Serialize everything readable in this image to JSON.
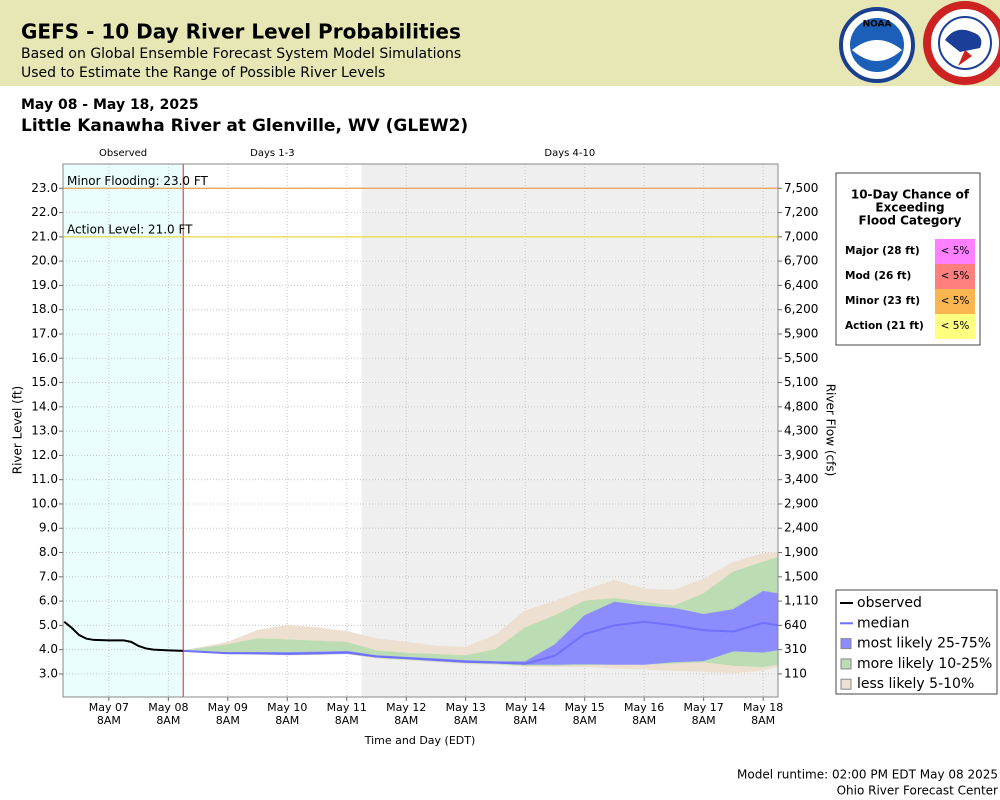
{
  "header": {
    "title": "GEFS - 10 Day River Level Probabilities",
    "subtitle_1": "Based on Global Ensemble Forecast System Model Simulations",
    "subtitle_2": "Used to Estimate the Range of Possible River Levels",
    "logo_text": "NOAA"
  },
  "chart_data": {
    "type": "line",
    "date_range": "May 08 - May 18, 2025",
    "title": "Little Kanawha River at Glenville, WV (GLEW2)",
    "x_label": "Time and Day (EDT)",
    "y_label": "River Level (ft)",
    "y2_label": "River Flow (cfs)",
    "xlim": [
      "2025-05-06T13:30",
      "2025-05-18T14:00"
    ],
    "xticks": [
      {
        "value": "2025-05-07T08:00",
        "label": "May 07\n8AM"
      },
      {
        "value": "2025-05-08T08:00",
        "label": "May 08\n8AM"
      },
      {
        "value": "2025-05-09T08:00",
        "label": "May 09\n8AM"
      },
      {
        "value": "2025-05-10T08:00",
        "label": "May 10\n8AM"
      },
      {
        "value": "2025-05-11T08:00",
        "label": "May 11\n8AM"
      },
      {
        "value": "2025-05-12T08:00",
        "label": "May 12\n8AM"
      },
      {
        "value": "2025-05-13T08:00",
        "label": "May 13\n8AM"
      },
      {
        "value": "2025-05-14T08:00",
        "label": "May 14\n8AM"
      },
      {
        "value": "2025-05-15T08:00",
        "label": "May 15\n8AM"
      },
      {
        "value": "2025-05-16T08:00",
        "label": "May 16\n8AM"
      },
      {
        "value": "2025-05-17T08:00",
        "label": "May 17\n8AM"
      },
      {
        "value": "2025-05-18T08:00",
        "label": "May 18\n8AM"
      }
    ],
    "ylim": [
      2.05,
      24.0
    ],
    "yticks": [
      {
        "value": 23,
        "label": "23.0"
      },
      {
        "value": 22,
        "label": "22.0"
      },
      {
        "value": 21,
        "label": "21.0"
      },
      {
        "value": 20,
        "label": "20.0"
      },
      {
        "value": 19,
        "label": "19.0"
      },
      {
        "value": 18,
        "label": "18.0"
      },
      {
        "value": 17,
        "label": "17.0"
      },
      {
        "value": 16,
        "label": "16.0"
      },
      {
        "value": 15,
        "label": "15.0"
      },
      {
        "value": 14,
        "label": "14.0"
      },
      {
        "value": 13,
        "label": "13.0"
      },
      {
        "value": 12,
        "label": "12.0"
      },
      {
        "value": 11,
        "label": "11.0"
      },
      {
        "value": 10,
        "label": "10.0"
      },
      {
        "value": 9,
        "label": "9.0"
      },
      {
        "value": 8,
        "label": "8.0"
      },
      {
        "value": 7,
        "label": "7.0"
      },
      {
        "value": 6,
        "label": "6.0"
      },
      {
        "value": 5,
        "label": "5.0"
      },
      {
        "value": 4,
        "label": "4.0"
      },
      {
        "value": 3,
        "label": "3.0"
      }
    ],
    "y2ticks": [
      {
        "value": 7500,
        "label": "7,500"
      },
      {
        "value": 7200,
        "label": "7,200"
      },
      {
        "value": 7000,
        "label": "7,000"
      },
      {
        "value": 6700,
        "label": "6,700"
      },
      {
        "value": 6400,
        "label": "6,400"
      },
      {
        "value": 6200,
        "label": "6,200"
      },
      {
        "value": 5900,
        "label": "5,900"
      },
      {
        "value": 5500,
        "label": "5,500"
      },
      {
        "value": 5100,
        "label": "5,100"
      },
      {
        "value": 4800,
        "label": "4,800"
      },
      {
        "value": 4300,
        "label": "4,300"
      },
      {
        "value": 3900,
        "label": "3,900"
      },
      {
        "value": 3400,
        "label": "3,400"
      },
      {
        "value": 2900,
        "label": "2,900"
      },
      {
        "value": 2400,
        "label": "2,400"
      },
      {
        "value": 1900,
        "label": "1,900"
      },
      {
        "value": 1500,
        "label": "1,500"
      },
      {
        "value": 1110,
        "label": "1,110"
      },
      640,
      310,
      110
    ],
    "grid": true,
    "periods": [
      {
        "label": "Observed",
        "start": "2025-05-06T13:30",
        "end": "2025-05-08T14:00",
        "color": "#eafefe"
      },
      {
        "label": "Days 1-3",
        "start": "2025-05-08T14:00",
        "end": "2025-05-11T14:00",
        "color": "#ffffff"
      },
      {
        "label": "Days 4-10",
        "start": "2025-05-11T14:00",
        "end": "2025-05-18T14:00",
        "color": "#efefef"
      }
    ],
    "thresholds": [
      {
        "label": "Minor Flooding: 23.0 FT",
        "value": 23.0,
        "color": "#e8a050"
      },
      {
        "label": "Action Level: 21.0 FT",
        "value": 21.0,
        "color": "#e8d840"
      }
    ],
    "observed": {
      "name": "observed",
      "color": "#000000",
      "x": [
        "2025-05-06T14:00",
        "2025-05-06T17:00",
        "2025-05-06T20:00",
        "2025-05-06T23:00",
        "2025-05-07T02:00",
        "2025-05-07T08:00",
        "2025-05-07T14:00",
        "2025-05-07T17:00",
        "2025-05-07T20:00",
        "2025-05-07T23:00",
        "2025-05-08T02:00",
        "2025-05-08T08:00",
        "2025-05-08T14:00"
      ],
      "values": [
        5.15,
        4.9,
        4.6,
        4.45,
        4.4,
        4.38,
        4.38,
        4.32,
        4.15,
        4.05,
        4.0,
        3.97,
        3.95
      ]
    },
    "forecast_x": [
      "2025-05-08T14:00",
      "2025-05-09T08:00",
      "2025-05-09T20:00",
      "2025-05-10T08:00",
      "2025-05-10T20:00",
      "2025-05-11T08:00",
      "2025-05-11T20:00",
      "2025-05-12T08:00",
      "2025-05-12T20:00",
      "2025-05-13T08:00",
      "2025-05-13T20:00",
      "2025-05-14T08:00",
      "2025-05-14T20:00",
      "2025-05-15T08:00",
      "2025-05-15T20:00",
      "2025-05-16T08:00",
      "2025-05-16T20:00",
      "2025-05-17T08:00",
      "2025-05-17T20:00",
      "2025-05-18T08:00",
      "2025-05-18T14:00"
    ],
    "series": [
      {
        "name": "median",
        "color": "#7070ff",
        "values": [
          3.95,
          3.85,
          3.85,
          3.83,
          3.85,
          3.88,
          3.72,
          3.65,
          3.58,
          3.5,
          3.47,
          3.42,
          3.75,
          4.65,
          5.0,
          5.15,
          5.0,
          4.8,
          4.75,
          5.1,
          5.0
        ]
      },
      {
        "name": "most likely 25-75%",
        "color": "#8c8cff",
        "low": [
          3.95,
          3.85,
          3.83,
          3.8,
          3.82,
          3.85,
          3.7,
          3.63,
          3.55,
          3.48,
          3.45,
          3.4,
          3.4,
          3.42,
          3.4,
          3.4,
          3.5,
          3.55,
          3.95,
          3.9,
          4.0
        ],
        "high": [
          3.95,
          3.88,
          3.88,
          3.88,
          3.9,
          3.93,
          3.75,
          3.68,
          3.62,
          3.55,
          3.5,
          3.5,
          4.2,
          5.4,
          5.95,
          5.8,
          5.7,
          5.45,
          5.65,
          6.4,
          6.3
        ]
      },
      {
        "name": "more likely 10-25%",
        "color": "#bcdcb4",
        "low": [
          3.95,
          3.85,
          3.82,
          3.8,
          3.82,
          3.85,
          3.68,
          3.6,
          3.53,
          3.46,
          3.42,
          3.35,
          3.35,
          3.38,
          3.4,
          3.4,
          3.45,
          3.5,
          3.35,
          3.3,
          3.4
        ],
        "high": [
          3.95,
          4.2,
          4.45,
          4.4,
          4.35,
          4.3,
          3.95,
          3.85,
          3.8,
          3.75,
          4.0,
          4.9,
          5.4,
          6.0,
          6.1,
          5.95,
          5.8,
          6.3,
          7.2,
          7.6,
          7.8
        ]
      },
      {
        "name": "less likely 5-10%",
        "color": "#ede0d0",
        "low": [
          3.95,
          3.85,
          3.8,
          3.78,
          3.8,
          3.83,
          3.65,
          3.58,
          3.5,
          3.43,
          3.4,
          3.32,
          3.3,
          3.3,
          3.25,
          3.2,
          3.15,
          3.1,
          3.05,
          3.15,
          3.3
        ],
        "high": [
          3.95,
          4.3,
          4.8,
          5.0,
          4.9,
          4.75,
          4.45,
          4.3,
          4.15,
          4.1,
          4.6,
          5.6,
          6.0,
          6.45,
          6.85,
          6.5,
          6.45,
          6.9,
          7.6,
          7.95,
          8.0
        ]
      }
    ],
    "flood_table": {
      "title_lines": [
        "10-Day Chance of",
        "Exceeding",
        "Flood Category"
      ],
      "rows": [
        {
          "category": "Major (28 ft)",
          "chance": "< 5%",
          "color": "#ff80ff"
        },
        {
          "category": "Mod (26 ft)",
          "chance": "< 5%",
          "color": "#ff7f7f"
        },
        {
          "category": "Minor (23 ft)",
          "chance": "< 5%",
          "color": "#f9b550"
        },
        {
          "category": "Action (21 ft)",
          "chance": "< 5%",
          "color": "#ffff80"
        }
      ]
    }
  },
  "footer": {
    "runtime": "Model runtime: 02:00 PM EDT May 08 2025",
    "center": "Ohio River Forecast Center"
  }
}
